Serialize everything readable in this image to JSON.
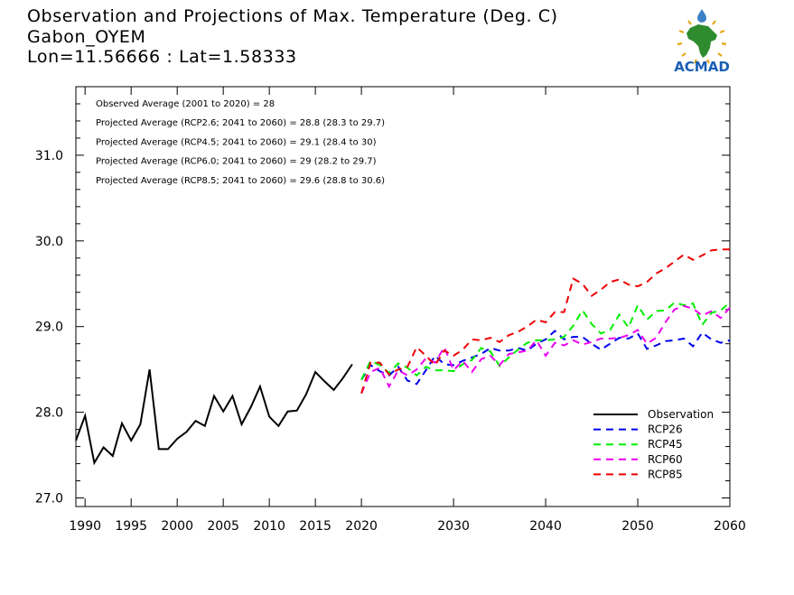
{
  "header": {
    "title": "Observation and Projections of Max. Temperature (Deg. C)",
    "location": "Gabon_OYEM",
    "coords": "Lon=11.56666 : Lat=1.58333"
  },
  "logo": {
    "text": "ACMAD",
    "icon": "africa-map-icon",
    "colors": {
      "africa": "#2e8b2e",
      "text": "#1a5fb4",
      "drop": "#3b82c4",
      "sun": "#e6a817"
    }
  },
  "annotations": [
    "Observed Average (2001 to 2020) = 28",
    "Projected Average (RCP2.6; 2041 to 2060) = 28.8 (28.3 to 29.7)",
    "Projected Average (RCP4.5; 2041 to 2060) = 29.1 (28.4 to 30)",
    "Projected Average (RCP6.0; 2041 to 2060) = 29 (28.2 to 29.7)",
    "Projected Average (RCP8.5; 2041 to 2060) = 29.6 (28.8 to 30.6)"
  ],
  "chart_data": {
    "type": "line",
    "xlim": [
      1989,
      2060
    ],
    "ylim": [
      26.9,
      31.8
    ],
    "x_ticks": [
      1990,
      1995,
      2000,
      2005,
      2010,
      2015,
      2020,
      2030,
      2040,
      2050,
      2060
    ],
    "y_ticks": [
      27.0,
      28.0,
      29.0,
      30.0,
      31.0
    ],
    "y_tick_labels": [
      "27.0",
      "28.0",
      "29.0",
      "30.0",
      "31.0"
    ],
    "legend": {
      "position": "bottom-right"
    },
    "series": [
      {
        "name": "Observation",
        "color": "#000000",
        "dashed": false,
        "x": [
          1989,
          1990,
          1991,
          1992,
          1993,
          1994,
          1995,
          1996,
          1997,
          1998,
          1999,
          2000,
          2001,
          2002,
          2003,
          2004,
          2005,
          2006,
          2007,
          2008,
          2009,
          2010,
          2011,
          2012,
          2013,
          2014,
          2015,
          2016,
          2017,
          2018,
          2019
        ],
        "y": [
          27.67,
          27.96,
          27.41,
          27.59,
          27.49,
          27.87,
          27.67,
          27.86,
          28.5,
          27.57,
          27.57,
          27.69,
          27.77,
          27.9,
          27.84,
          28.19,
          28.01,
          28.19,
          27.86,
          28.06,
          28.3,
          27.95,
          27.84,
          28.01,
          28.02,
          28.21,
          28.47,
          28.36,
          28.26,
          28.4,
          28.56
        ]
      },
      {
        "name": "RCP26",
        "color": "#0000ee",
        "dashed": true,
        "x": [
          2020,
          2021,
          2022,
          2023,
          2024,
          2025,
          2026,
          2027,
          2028,
          2029,
          2030,
          2031,
          2032,
          2033,
          2034,
          2035,
          2036,
          2037,
          2038,
          2039,
          2040,
          2041,
          2042,
          2043,
          2044,
          2045,
          2046,
          2047,
          2048,
          2049,
          2050,
          2051,
          2052,
          2053,
          2054,
          2055,
          2056,
          2057,
          2058,
          2059,
          2060
        ],
        "y": [
          28.38,
          28.55,
          28.48,
          28.43,
          28.53,
          28.37,
          28.33,
          28.49,
          28.66,
          28.56,
          28.55,
          28.6,
          28.64,
          28.68,
          28.75,
          28.72,
          28.72,
          28.75,
          28.72,
          28.8,
          28.85,
          28.95,
          28.85,
          28.88,
          28.88,
          28.8,
          28.73,
          28.8,
          28.87,
          28.86,
          28.92,
          28.74,
          28.78,
          28.83,
          28.84,
          28.86,
          28.77,
          28.93,
          28.85,
          28.81,
          28.84
        ]
      },
      {
        "name": "RCP45",
        "color": "#00ee00",
        "dashed": true,
        "x": [
          2020,
          2021,
          2022,
          2023,
          2024,
          2025,
          2026,
          2027,
          2028,
          2029,
          2030,
          2031,
          2032,
          2033,
          2034,
          2035,
          2036,
          2037,
          2038,
          2039,
          2040,
          2041,
          2042,
          2043,
          2044,
          2045,
          2046,
          2047,
          2048,
          2049,
          2050,
          2051,
          2052,
          2053,
          2054,
          2055,
          2056,
          2057,
          2058,
          2059,
          2060
        ],
        "y": [
          28.38,
          28.6,
          28.55,
          28.46,
          28.57,
          28.52,
          28.43,
          28.53,
          28.49,
          28.49,
          28.48,
          28.56,
          28.61,
          28.75,
          28.71,
          28.54,
          28.64,
          28.73,
          28.81,
          28.84,
          28.84,
          28.85,
          28.88,
          29.01,
          29.19,
          29.03,
          28.92,
          28.96,
          29.14,
          28.99,
          29.25,
          29.08,
          29.18,
          29.19,
          29.28,
          29.25,
          29.27,
          29.02,
          29.16,
          29.19,
          29.28
        ]
      },
      {
        "name": "RCP60",
        "color": "#ee00ee",
        "dashed": true,
        "x": [
          2020,
          2021,
          2022,
          2023,
          2024,
          2025,
          2026,
          2027,
          2028,
          2029,
          2030,
          2031,
          2032,
          2033,
          2034,
          2035,
          2036,
          2037,
          2038,
          2039,
          2040,
          2041,
          2042,
          2043,
          2044,
          2045,
          2046,
          2047,
          2048,
          2049,
          2050,
          2051,
          2052,
          2053,
          2054,
          2055,
          2056,
          2057,
          2058,
          2059,
          2060
        ],
        "y": [
          28.22,
          28.47,
          28.52,
          28.3,
          28.49,
          28.43,
          28.5,
          28.63,
          28.58,
          28.76,
          28.49,
          28.6,
          28.47,
          28.62,
          28.66,
          28.55,
          28.68,
          28.7,
          28.72,
          28.84,
          28.66,
          28.81,
          28.78,
          28.84,
          28.79,
          28.82,
          28.86,
          28.86,
          28.87,
          28.9,
          28.96,
          28.8,
          28.87,
          29.05,
          29.2,
          29.24,
          29.21,
          29.13,
          29.18,
          29.1,
          29.22
        ]
      },
      {
        "name": "RCP85",
        "color": "#ee0000",
        "dashed": true,
        "x": [
          2020,
          2021,
          2022,
          2023,
          2024,
          2025,
          2026,
          2027,
          2028,
          2029,
          2030,
          2031,
          2032,
          2033,
          2034,
          2035,
          2036,
          2037,
          2038,
          2039,
          2040,
          2041,
          2042,
          2043,
          2044,
          2045,
          2046,
          2047,
          2048,
          2049,
          2050,
          2051,
          2052,
          2053,
          2054,
          2055,
          2056,
          2057,
          2058,
          2059,
          2060
        ],
        "y": [
          28.22,
          28.58,
          28.58,
          28.44,
          28.5,
          28.53,
          28.76,
          28.66,
          28.55,
          28.72,
          28.66,
          28.73,
          28.85,
          28.84,
          28.87,
          28.82,
          28.9,
          28.94,
          29.0,
          29.08,
          29.05,
          29.17,
          29.17,
          29.56,
          29.5,
          29.36,
          29.43,
          29.52,
          29.55,
          29.49,
          29.47,
          29.52,
          29.62,
          29.68,
          29.76,
          29.84,
          29.78,
          29.83,
          29.89,
          29.9,
          29.9
        ]
      }
    ]
  }
}
